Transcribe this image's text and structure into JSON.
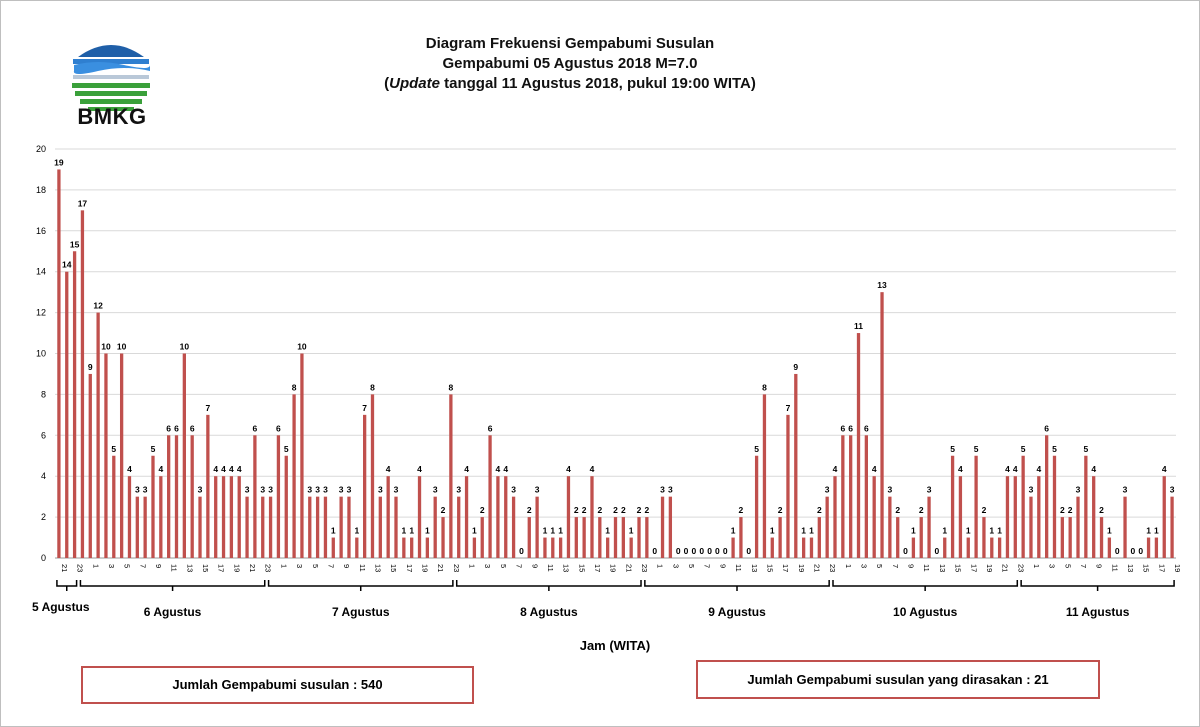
{
  "logo": {
    "text": "BMKG",
    "icon": "bmkg-logo-icon"
  },
  "title": {
    "line1": "Diagram Frekuensi Gempabumi Susulan",
    "line2": "Gempabumi 05 Agustus 2018 M=7.0",
    "line3_open": "(",
    "line3_italic": "Update",
    "line3_rest": " tanggal 11 Agustus 2018, pukul 19:00 WITA)"
  },
  "summary": {
    "total": "Jumlah Gempabumi susulan : 540",
    "felt": "Jumlah Gempabumi susulan yang dirasakan : 21"
  },
  "chart_data": {
    "type": "bar",
    "title": "Diagram Frekuensi Gempabumi Susulan",
    "xlabel": "Jam (WITA)",
    "ylabel": "",
    "ylim": [
      0,
      20
    ],
    "yticks": [
      0,
      2,
      4,
      6,
      8,
      10,
      12,
      14,
      16,
      18,
      20
    ],
    "grid": "horizontal",
    "legend": "none",
    "colors": {
      "bar": "#c0504d",
      "grid": "#d9d9d9",
      "bracket": "#000000",
      "box_border": "#c0504d"
    },
    "days": [
      {
        "label": "5 Agustus",
        "start": 0,
        "end": 2
      },
      {
        "label": "6 Agustus",
        "start": 3,
        "end": 26
      },
      {
        "label": "7 Agustus",
        "start": 27,
        "end": 50
      },
      {
        "label": "8 Agustus",
        "start": 51,
        "end": 74
      },
      {
        "label": "9 Agustus",
        "start": 75,
        "end": 98
      },
      {
        "label": "10 Agustus",
        "start": 99,
        "end": 122
      },
      {
        "label": "11 Agustus",
        "start": 123,
        "end": 142
      }
    ],
    "categories": [
      "21",
      "22",
      "23",
      "0",
      "1",
      "2",
      "3",
      "4",
      "5",
      "6",
      "7",
      "8",
      "9",
      "10",
      "11",
      "12",
      "13",
      "14",
      "15",
      "16",
      "17",
      "18",
      "19",
      "20",
      "21",
      "22",
      "23",
      "0",
      "1",
      "2",
      "3",
      "4",
      "5",
      "6",
      "7",
      "8",
      "9",
      "10",
      "11",
      "12",
      "13",
      "14",
      "15",
      "16",
      "17",
      "18",
      "19",
      "20",
      "21",
      "22",
      "23",
      "0",
      "1",
      "2",
      "3",
      "4",
      "5",
      "6",
      "7",
      "8",
      "9",
      "10",
      "11",
      "12",
      "13",
      "14",
      "15",
      "16",
      "17",
      "18",
      "19",
      "20",
      "21",
      "22",
      "23",
      "0",
      "1",
      "2",
      "3",
      "4",
      "5",
      "6",
      "7",
      "8",
      "9",
      "10",
      "11",
      "12",
      "13",
      "14",
      "15",
      "16",
      "17",
      "18",
      "19",
      "20",
      "21",
      "22",
      "23",
      "0",
      "1",
      "2",
      "3",
      "4",
      "5",
      "6",
      "7",
      "8",
      "9",
      "10",
      "11",
      "12",
      "13",
      "14",
      "15",
      "16",
      "17",
      "18",
      "19",
      "20",
      "21",
      "22",
      "23",
      "0",
      "1",
      "2",
      "3",
      "4",
      "5",
      "6",
      "7",
      "8",
      "9",
      "10",
      "11",
      "12",
      "13",
      "14",
      "15",
      "16",
      "17",
      "18",
      "19"
    ],
    "values": [
      19,
      14,
      15,
      17,
      9,
      12,
      10,
      5,
      10,
      4,
      3,
      3,
      5,
      4,
      6,
      6,
      10,
      6,
      3,
      7,
      4,
      4,
      4,
      4,
      3,
      6,
      3,
      3,
      6,
      5,
      8,
      10,
      3,
      3,
      3,
      1,
      3,
      3,
      1,
      7,
      8,
      3,
      4,
      3,
      1,
      1,
      4,
      1,
      3,
      2,
      8,
      3,
      4,
      1,
      2,
      6,
      4,
      4,
      3,
      0,
      2,
      3,
      1,
      1,
      1,
      4,
      2,
      2,
      4,
      2,
      1,
      2,
      2,
      1,
      2,
      2,
      0,
      3,
      3,
      0,
      0,
      0,
      0,
      0,
      0,
      0,
      1,
      2,
      0,
      5,
      8,
      1,
      2,
      7,
      9,
      1,
      1,
      2,
      3,
      4,
      6,
      6,
      11,
      6,
      4,
      13,
      3,
      2,
      0,
      1,
      2,
      3,
      0,
      1,
      5,
      4,
      1,
      5,
      2,
      1,
      1,
      4,
      4,
      5,
      3,
      4,
      6,
      5,
      2,
      2,
      3,
      5,
      4,
      2,
      1,
      0,
      3,
      0,
      0,
      1,
      1,
      4,
      3
    ]
  }
}
